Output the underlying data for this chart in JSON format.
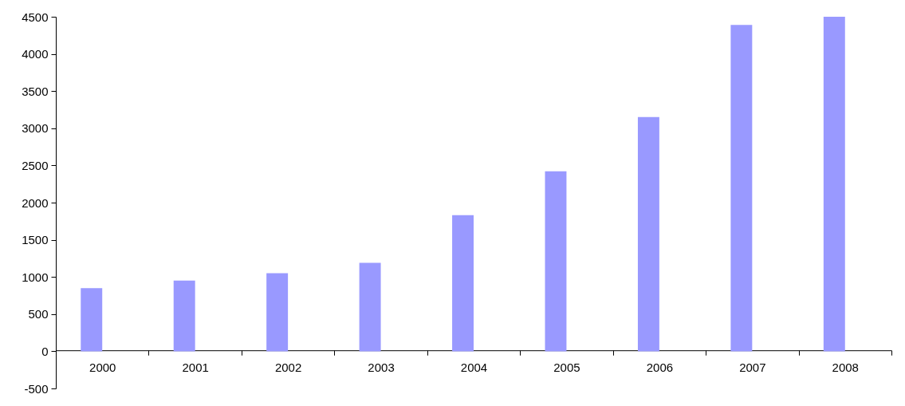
{
  "chart_data": {
    "type": "bar",
    "categories": [
      "2000",
      "2001",
      "2002",
      "2003",
      "2004",
      "2005",
      "2006",
      "2007",
      "2008"
    ],
    "values": [
      850,
      950,
      1050,
      1190,
      1830,
      2420,
      3150,
      4390,
      4500
    ],
    "color": "#9999ff",
    "ylim": [
      -500,
      4500
    ],
    "yticks": [
      -500,
      0,
      500,
      1000,
      1500,
      2000,
      2500,
      3000,
      3500,
      4000,
      4500
    ],
    "grid": false,
    "legend": false
  }
}
